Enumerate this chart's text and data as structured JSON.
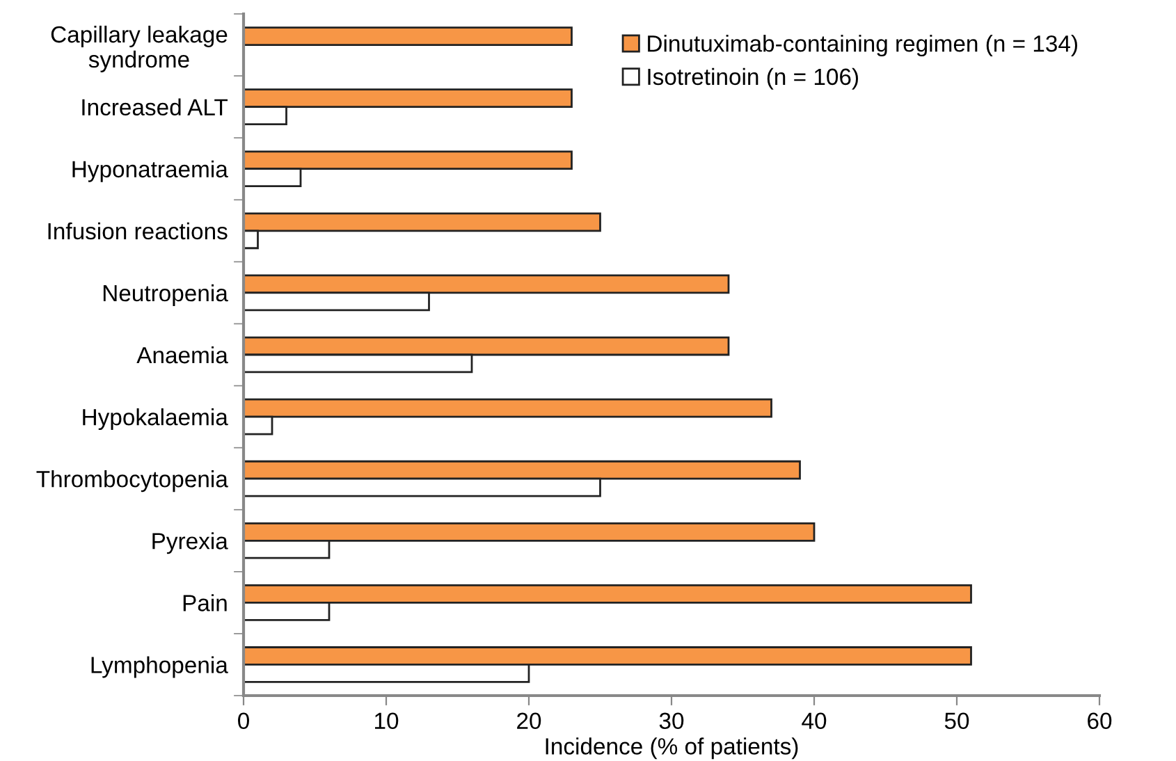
{
  "chart_data": {
    "type": "bar",
    "orientation": "horizontal",
    "xlabel": "Incidence (% of patients)",
    "categories": [
      "Capillary leakage\nsyndrome",
      "Increased ALT",
      "Hyponatraemia",
      "Infusion reactions",
      "Neutropenia",
      "Anaemia",
      "Hypokalaemia",
      "Thrombocytopenia",
      "Pyrexia",
      "Pain",
      "Lymphopenia"
    ],
    "series": [
      {
        "name": "Dinutuximab-containing regimen (n = 134)",
        "color": "#f79646",
        "values": [
          23,
          23,
          23,
          25,
          34,
          34,
          37,
          39,
          40,
          51,
          51
        ]
      },
      {
        "name": "Isotretinoin (n = 106)",
        "color": "#ffffff",
        "values": [
          null,
          3,
          4,
          1,
          13,
          16,
          2,
          25,
          6,
          6,
          20
        ]
      }
    ],
    "xlim": [
      0,
      60
    ],
    "xticks": [
      0,
      10,
      20,
      30,
      40,
      50,
      60
    ],
    "grid": false,
    "legend": "top right"
  }
}
